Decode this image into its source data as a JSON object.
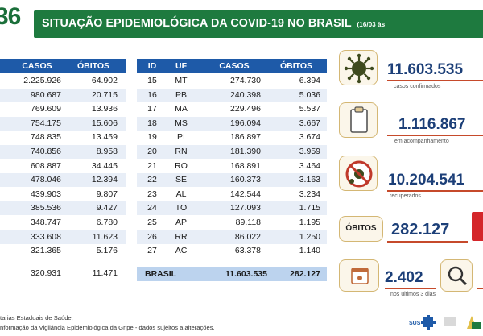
{
  "header": {
    "edition": "36",
    "title": "SITUAÇÃO EPIDEMIOLÓGICA DA COVID-19 NO BRASIL",
    "date": "(16/03 às"
  },
  "left_table": {
    "columns": [
      "CASOS",
      "ÓBITOS"
    ],
    "rows": [
      {
        "casos": "2.225.926",
        "obitos": "64.902"
      },
      {
        "casos": "980.687",
        "obitos": "20.715"
      },
      {
        "casos": "769.609",
        "obitos": "13.936"
      },
      {
        "casos": "754.175",
        "obitos": "15.606"
      },
      {
        "casos": "748.835",
        "obitos": "13.459"
      },
      {
        "casos": "740.856",
        "obitos": "8.958"
      },
      {
        "casos": "608.887",
        "obitos": "34.445"
      },
      {
        "casos": "478.046",
        "obitos": "12.394"
      },
      {
        "casos": "439.903",
        "obitos": "9.807"
      },
      {
        "casos": "385.536",
        "obitos": "9.427"
      },
      {
        "casos": "348.747",
        "obitos": "6.780"
      },
      {
        "casos": "333.608",
        "obitos": "11.623"
      },
      {
        "casos": "321.365",
        "obitos": "5.176"
      },
      {
        "casos": "320.931",
        "obitos": "11.471"
      }
    ]
  },
  "right_table": {
    "columns": [
      "ID",
      "UF",
      "CASOS",
      "ÓBITOS"
    ],
    "rows": [
      {
        "id": "15",
        "uf": "MT",
        "casos": "274.730",
        "obitos": "6.394"
      },
      {
        "id": "16",
        "uf": "PB",
        "casos": "240.398",
        "obitos": "5.036"
      },
      {
        "id": "17",
        "uf": "MA",
        "casos": "229.496",
        "obitos": "5.537"
      },
      {
        "id": "18",
        "uf": "MS",
        "casos": "196.094",
        "obitos": "3.667"
      },
      {
        "id": "19",
        "uf": "PI",
        "casos": "186.897",
        "obitos": "3.674"
      },
      {
        "id": "20",
        "uf": "RN",
        "casos": "181.390",
        "obitos": "3.959"
      },
      {
        "id": "21",
        "uf": "RO",
        "casos": "168.891",
        "obitos": "3.464"
      },
      {
        "id": "22",
        "uf": "SE",
        "casos": "160.373",
        "obitos": "3.163"
      },
      {
        "id": "23",
        "uf": "AL",
        "casos": "142.544",
        "obitos": "3.234"
      },
      {
        "id": "24",
        "uf": "TO",
        "casos": "127.093",
        "obitos": "1.715"
      },
      {
        "id": "25",
        "uf": "AP",
        "casos": "89.118",
        "obitos": "1.195"
      },
      {
        "id": "26",
        "uf": "RR",
        "casos": "86.022",
        "obitos": "1.250"
      },
      {
        "id": "27",
        "uf": "AC",
        "casos": "63.378",
        "obitos": "1.140"
      }
    ],
    "total": {
      "label": "BRASIL",
      "casos": "11.603.535",
      "obitos": "282.127"
    }
  },
  "cards": {
    "confirmed": {
      "value": "11.603.535",
      "label": "casos confirmados",
      "icon": "virus-icon"
    },
    "monitoring": {
      "value": "1.116.867",
      "label": "em acompanhamento",
      "icon": "clipboard-icon"
    },
    "recovered": {
      "value": "10.204.541",
      "label": "recuperados",
      "icon": "no-virus-icon"
    },
    "deaths": {
      "box_label": "ÓBITOS",
      "value": "282.127"
    },
    "recent": {
      "value": "2.402",
      "label": "nos últimos 3 dias",
      "icon": "calendar-icon"
    },
    "investigation": {
      "icon": "magnifier-icon"
    }
  },
  "footer": {
    "line1": "tarias Estaduais de Saúde;",
    "line2": "nformação da Vigilância Epidemiológica da Gripe - dados sujeitos a alterações."
  },
  "colors": {
    "green": "#1e7a3f",
    "blue": "#1e5aa8",
    "value_blue": "#1c3f78",
    "red": "#d4262a"
  }
}
